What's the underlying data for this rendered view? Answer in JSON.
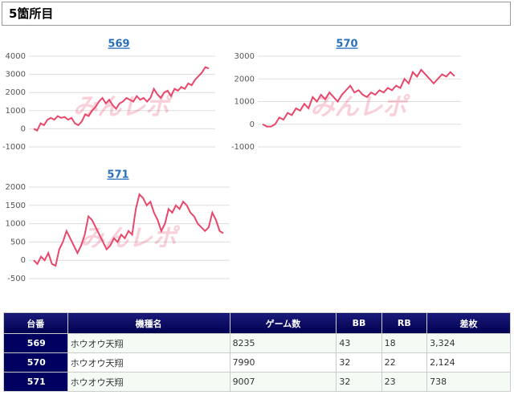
{
  "header": {
    "title": "5箇所目"
  },
  "chart_data": [
    {
      "type": "line",
      "title": "569",
      "watermark": "みんレポ",
      "color": "#e8476a",
      "ylim": [
        -1000,
        4000
      ],
      "yticks": [
        -1000,
        0,
        1000,
        2000,
        3000,
        4000
      ],
      "grid": true,
      "values": [
        0,
        -100,
        300,
        200,
        500,
        600,
        500,
        700,
        600,
        650,
        500,
        600,
        300,
        200,
        400,
        800,
        700,
        1000,
        1200,
        1500,
        1700,
        1400,
        1600,
        1300,
        1100,
        1400,
        1500,
        1700,
        1600,
        1500,
        1800,
        1600,
        1700,
        1500,
        1700,
        2200,
        1900,
        1700,
        2000,
        2100,
        1800,
        2200,
        2100,
        2300,
        2200,
        2500,
        2400,
        2700,
        2900,
        3100,
        3400,
        3324
      ]
    },
    {
      "type": "line",
      "title": "570",
      "watermark": "みんレポ",
      "color": "#e8476a",
      "ylim": [
        -1000,
        3000
      ],
      "yticks": [
        -1000,
        0,
        1000,
        2000,
        3000
      ],
      "grid": true,
      "values": [
        0,
        -100,
        -100,
        0,
        300,
        200,
        500,
        400,
        700,
        600,
        900,
        700,
        1200,
        1000,
        1300,
        1100,
        1400,
        1200,
        1000,
        1300,
        1500,
        1700,
        1400,
        1500,
        1300,
        1200,
        1400,
        1300,
        1500,
        1400,
        1600,
        1500,
        1700,
        1600,
        2000,
        1800,
        2300,
        2100,
        2400,
        2200,
        2000,
        1800,
        2000,
        2200,
        2100,
        2300,
        2124
      ]
    },
    {
      "type": "line",
      "title": "571",
      "watermark": "みんレポ",
      "color": "#e8476a",
      "ylim": [
        -500,
        2000
      ],
      "yticks": [
        -500,
        0,
        500,
        1000,
        1500,
        2000
      ],
      "grid": true,
      "values": [
        0,
        -100,
        100,
        0,
        200,
        -100,
        -150,
        300,
        500,
        800,
        600,
        400,
        200,
        400,
        700,
        1200,
        1100,
        900,
        700,
        500,
        300,
        400,
        600,
        500,
        700,
        600,
        800,
        700,
        1400,
        1800,
        1700,
        1500,
        1600,
        1300,
        1100,
        800,
        1000,
        1400,
        1300,
        1500,
        1400,
        1600,
        1500,
        1300,
        1200,
        1000,
        900,
        800,
        900,
        1300,
        1100,
        800,
        738
      ]
    }
  ],
  "table": {
    "header": [
      "台番",
      "機種名",
      "ゲーム数",
      "BB",
      "RB",
      "差枚"
    ],
    "rows": [
      [
        "569",
        "ホウオウ天翔",
        "8235",
        "43",
        "18",
        "3,324"
      ],
      [
        "570",
        "ホウオウ天翔",
        "7990",
        "32",
        "22",
        "2,124"
      ],
      [
        "571",
        "ホウオウ天翔",
        "9007",
        "32",
        "23",
        "738"
      ]
    ]
  }
}
